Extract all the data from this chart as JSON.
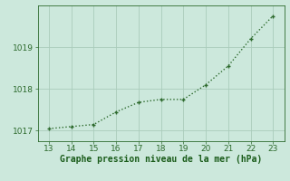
{
  "x": [
    13,
    14,
    15,
    16,
    17,
    18,
    19,
    20,
    21,
    22,
    23
  ],
  "y": [
    1017.05,
    1017.1,
    1017.15,
    1017.45,
    1017.68,
    1017.75,
    1017.75,
    1018.1,
    1018.55,
    1019.2,
    1019.75
  ],
  "line_color": "#2d6a2d",
  "marker_color": "#2d6a2d",
  "bg_color": "#cce8dc",
  "grid_color": "#aaccbb",
  "xlabel": "Graphe pression niveau de la mer (hPa)",
  "xlabel_color": "#1a5c1a",
  "tick_color": "#2d6a2d",
  "xlim": [
    12.5,
    23.5
  ],
  "ylim": [
    1016.75,
    1020.0
  ],
  "yticks": [
    1017,
    1018,
    1019
  ],
  "xticks": [
    13,
    14,
    15,
    16,
    17,
    18,
    19,
    20,
    21,
    22,
    23
  ],
  "fontsize_ticks": 6.5,
  "fontsize_xlabel": 7,
  "linewidth": 1.0,
  "markersize": 3.0
}
